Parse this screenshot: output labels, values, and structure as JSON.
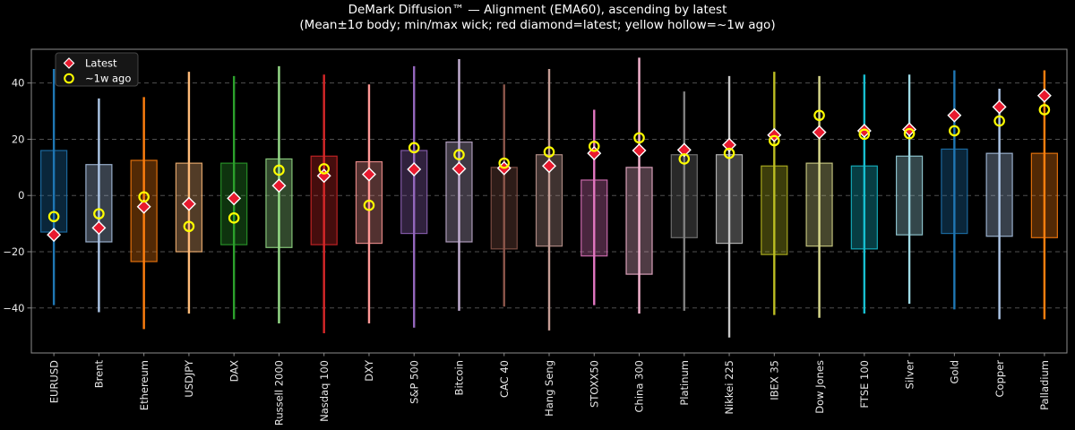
{
  "chart_data": {
    "type": "candlestick-range",
    "title": "DeMark Diffusion™ — Alignment (EMA60), ascending by latest",
    "subtitle": "(Mean±1σ body; min/max wick; red diamond=latest; yellow hollow=~1w ago)",
    "xlabel": "",
    "ylabel": "",
    "ylim": [
      -56,
      52
    ],
    "yticks": [
      40,
      20,
      0,
      -20,
      -40
    ],
    "ytick_labels": [
      "40",
      "20",
      "0",
      "−20",
      "−40"
    ],
    "grid": true,
    "legend": {
      "position": "upper left",
      "entries": [
        {
          "label": "Latest",
          "marker": "red-diamond"
        },
        {
          "label": "~1w ago",
          "marker": "yellow-hollow-circle"
        }
      ]
    },
    "style": {
      "background": "#000000",
      "text_color": "#ffffff",
      "tick_color": "#e8e8e8",
      "grid_color": "#4f4f4f",
      "spine_color": "#8c8c8c",
      "latest_color": "#e8192e",
      "latest_edge": "#ffffff",
      "week_ago_color": "#ffff00",
      "body_fill_alpha": 0.32,
      "body_edge_alpha": 0.85,
      "legend_bg": "#161616",
      "legend_border": "#454545"
    },
    "series": [
      {
        "name": "EURUSD",
        "color": "#1f77b4",
        "min": -39,
        "max": 45,
        "body_low": -13,
        "body_high": 16,
        "latest": -14,
        "week_ago": -7.5
      },
      {
        "name": "Brent",
        "color": "#aec7e8",
        "min": -41.5,
        "max": 34.5,
        "body_low": -16.5,
        "body_high": 11,
        "latest": -11.5,
        "week_ago": -6.5
      },
      {
        "name": "Ethereum",
        "color": "#ff7f0e",
        "min": -47.5,
        "max": 35,
        "body_low": -23.5,
        "body_high": 12.5,
        "latest": -4,
        "week_ago": -0.5
      },
      {
        "name": "USDJPY",
        "color": "#ffbb78",
        "min": -42,
        "max": 44,
        "body_low": -20,
        "body_high": 11.5,
        "latest": -3,
        "week_ago": -11
      },
      {
        "name": "DAX",
        "color": "#2ca02c",
        "min": -44,
        "max": 42.5,
        "body_low": -17.5,
        "body_high": 11.5,
        "latest": -1,
        "week_ago": -8
      },
      {
        "name": "Russell 2000",
        "color": "#98df8a",
        "min": -45.5,
        "max": 46,
        "body_low": -18.5,
        "body_high": 13,
        "latest": 3.5,
        "week_ago": 9
      },
      {
        "name": "Nasdaq 100",
        "color": "#d62728",
        "min": -49,
        "max": 43,
        "body_low": -17.5,
        "body_high": 14,
        "latest": 7,
        "week_ago": 9.5
      },
      {
        "name": "DXY",
        "color": "#ff9896",
        "min": -45.5,
        "max": 39.5,
        "body_low": -17,
        "body_high": 12,
        "latest": 7.5,
        "week_ago": -3.5
      },
      {
        "name": "S&P 500",
        "color": "#9467bd",
        "min": -47,
        "max": 46,
        "body_low": -13.5,
        "body_high": 16,
        "latest": 9.3,
        "week_ago": 17
      },
      {
        "name": "Bitcoin",
        "color": "#c5b0d5",
        "min": -41,
        "max": 48.5,
        "body_low": -16.5,
        "body_high": 19,
        "latest": 9.5,
        "week_ago": 14.5
      },
      {
        "name": "CAC 40",
        "color": "#8c564b",
        "min": -39.5,
        "max": 39.5,
        "body_low": -19,
        "body_high": 10,
        "latest": 9.7,
        "week_ago": 11.5
      },
      {
        "name": "Hang Seng",
        "color": "#c49c94",
        "min": -48,
        "max": 45,
        "body_low": -18,
        "body_high": 14.5,
        "latest": 10.5,
        "week_ago": 15.5
      },
      {
        "name": "STOXX50",
        "color": "#e377c2",
        "min": -39,
        "max": 30.5,
        "body_low": -21.5,
        "body_high": 5.5,
        "latest": 15,
        "week_ago": 17.5
      },
      {
        "name": "China 300",
        "color": "#f7b6d2",
        "min": -42,
        "max": 49,
        "body_low": -28,
        "body_high": 10,
        "latest": 16,
        "week_ago": 20.5
      },
      {
        "name": "Platinum",
        "color": "#7f7f7f",
        "min": -41,
        "max": 37,
        "body_low": -15,
        "body_high": 14.5,
        "latest": 16.2,
        "week_ago": 13
      },
      {
        "name": "Nikkei 225",
        "color": "#c7c7c7",
        "min": -50.5,
        "max": 42.5,
        "body_low": -17,
        "body_high": 14.5,
        "latest": 18,
        "week_ago": 15
      },
      {
        "name": "IBEX 35",
        "color": "#bcbd22",
        "min": -42.5,
        "max": 44,
        "body_low": -21,
        "body_high": 10.5,
        "latest": 21.5,
        "week_ago": 19.5
      },
      {
        "name": "Dow Jones",
        "color": "#dbdb8d",
        "min": -43.5,
        "max": 42.5,
        "body_low": -18,
        "body_high": 11.5,
        "latest": 22.5,
        "week_ago": 28.5
      },
      {
        "name": "FTSE 100",
        "color": "#17becf",
        "min": -42,
        "max": 43,
        "body_low": -19,
        "body_high": 10.5,
        "latest": 23,
        "week_ago": 21.8
      },
      {
        "name": "Silver",
        "color": "#9edae5",
        "min": -38.5,
        "max": 43,
        "body_low": -14,
        "body_high": 14,
        "latest": 23.5,
        "week_ago": 22
      },
      {
        "name": "Gold",
        "color": "#1f77b4",
        "min": -40.5,
        "max": 44.5,
        "body_low": -13.5,
        "body_high": 16.5,
        "latest": 28.5,
        "week_ago": 23
      },
      {
        "name": "Copper",
        "color": "#aec7e8",
        "min": -44,
        "max": 38,
        "body_low": -14.5,
        "body_high": 15,
        "latest": 31.5,
        "week_ago": 26.5
      },
      {
        "name": "Palladium",
        "color": "#ff7f0e",
        "min": -44,
        "max": 44.5,
        "body_low": -15,
        "body_high": 15,
        "latest": 35.5,
        "week_ago": 30.5
      }
    ]
  }
}
